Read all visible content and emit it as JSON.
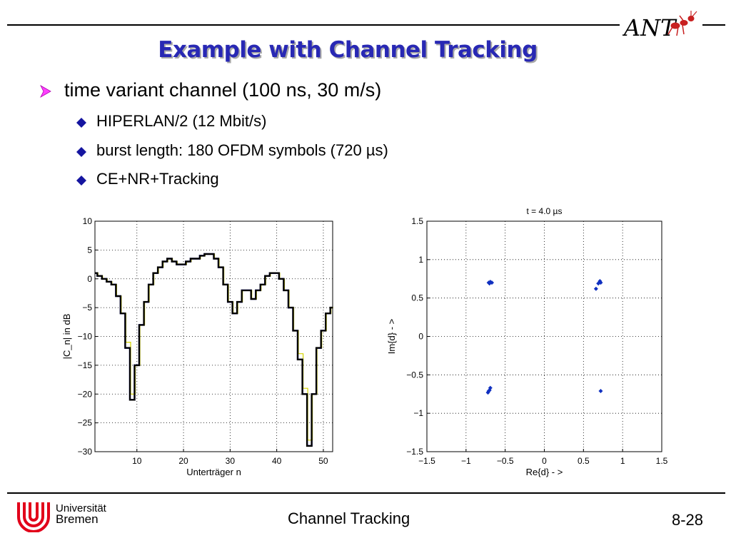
{
  "slide": {
    "title": "Example with Channel Tracking",
    "bullet1": "time variant channel (100 ns, 30 m/s)",
    "sub_bullets": [
      "HIPERLAN/2  (12 Mbit/s)",
      "burst length: 180 OFDM symbols (720 µs)",
      "CE+NR+Tracking"
    ]
  },
  "footer": {
    "center": "Channel Tracking",
    "page": "8-28",
    "university_line1": "Universität",
    "university_line2": "Bremen"
  },
  "logo": {
    "text": "ANT"
  },
  "colors": {
    "title": "#2828b4",
    "bullet_arrow": "#ff40ff",
    "bullet_diamond": "#1515a0",
    "curve_blue": "#0000ff",
    "curve_yellow": "#d4d400",
    "curve_black": "#000000",
    "points": "#1030c0",
    "ub_logo": "#e2001a",
    "ant_red": "#c82020"
  },
  "chart_data": [
    {
      "type": "line",
      "title": "",
      "xlabel": "Unterträger n",
      "ylabel": "|C_n| in dB",
      "xlim": [
        1,
        52
      ],
      "ylim": [
        -30,
        10
      ],
      "xticks": [
        10,
        20,
        30,
        40,
        50
      ],
      "yticks": [
        10,
        5,
        0,
        -5,
        -10,
        -15,
        -20,
        -25,
        -30
      ],
      "grid": true,
      "x": [
        1,
        2,
        3,
        4,
        5,
        6,
        7,
        8,
        9,
        10,
        11,
        12,
        13,
        14,
        15,
        16,
        17,
        18,
        19,
        20,
        21,
        22,
        23,
        24,
        25,
        26,
        27,
        28,
        29,
        30,
        31,
        32,
        33,
        34,
        35,
        36,
        37,
        38,
        39,
        40,
        41,
        42,
        43,
        44,
        45,
        46,
        47,
        48,
        49,
        50,
        51,
        52
      ],
      "series": [
        {
          "color": "blue",
          "values": [
            1,
            0.5,
            0,
            -0.5,
            -1,
            -3,
            -6,
            -12,
            -21,
            -15,
            -8,
            -4,
            -1,
            1,
            2,
            3,
            3.5,
            3,
            2.5,
            2.5,
            3,
            3.5,
            3.5,
            4,
            4.3,
            4.3,
            3.5,
            2,
            -1,
            -4,
            -6,
            -4,
            -2,
            -2,
            -3.5,
            -2,
            -1,
            0.5,
            1,
            1,
            0,
            -2,
            -5,
            -9,
            -14,
            -20,
            -29,
            -20,
            -12,
            -9,
            -6,
            -5
          ]
        },
        {
          "color": "yellow",
          "values": [
            1,
            0.5,
            0,
            -0.5,
            -1,
            -3,
            -6,
            -11,
            -20,
            -15,
            -8,
            -4,
            -1,
            1,
            2,
            3,
            3.5,
            3,
            2.5,
            2.5,
            3,
            3.5,
            3.5,
            4,
            4.3,
            4.3,
            3.5,
            2,
            -1,
            -4,
            -6,
            -4,
            -2,
            -2,
            -3.5,
            -2,
            -1,
            0.5,
            1,
            1,
            0,
            -2,
            -5,
            -9,
            -13,
            -19,
            -28,
            -20,
            -12,
            -9,
            -6,
            -5
          ]
        },
        {
          "color": "black",
          "values": [
            1,
            0.5,
            0,
            -0.5,
            -1,
            -3,
            -6,
            -12,
            -21,
            -15,
            -8,
            -4,
            -1,
            1,
            2,
            3,
            3.5,
            3,
            2.5,
            2.5,
            3,
            3.5,
            3.5,
            4,
            4.3,
            4.3,
            3.5,
            2,
            -1,
            -4,
            -6,
            -4,
            -2,
            -2,
            -3.5,
            -2,
            -1,
            0.5,
            1,
            1,
            0,
            -2,
            -5,
            -9,
            -14,
            -20,
            -29,
            -20,
            -12,
            -9,
            -6,
            -5
          ]
        }
      ]
    },
    {
      "type": "scatter",
      "title": "t =   4.0 µs",
      "xlabel": "Re{d}  - >",
      "ylabel": "Im{d}  - >",
      "xlim": [
        -1.5,
        1.5
      ],
      "ylim": [
        -1.5,
        1.5
      ],
      "xticks": [
        -1.5,
        -1,
        -0.5,
        0,
        0.5,
        1,
        1.5
      ],
      "yticks": [
        1.5,
        1,
        0.5,
        0,
        -0.5,
        -1,
        -1.5
      ],
      "grid": true,
      "points": [
        {
          "x": -0.71,
          "y": 0.7
        },
        {
          "x": -0.69,
          "y": 0.71
        },
        {
          "x": -0.67,
          "y": 0.7
        },
        {
          "x": -0.7,
          "y": 0.69
        },
        {
          "x": 0.69,
          "y": 0.69
        },
        {
          "x": 0.71,
          "y": 0.72
        },
        {
          "x": 0.72,
          "y": 0.7
        },
        {
          "x": 0.66,
          "y": 0.62
        },
        {
          "x": -0.72,
          "y": -0.73
        },
        {
          "x": -0.7,
          "y": -0.7
        },
        {
          "x": -0.69,
          "y": -0.67
        },
        {
          "x": -0.71,
          "y": -0.71
        },
        {
          "x": 0.72,
          "y": -0.71
        }
      ]
    }
  ]
}
